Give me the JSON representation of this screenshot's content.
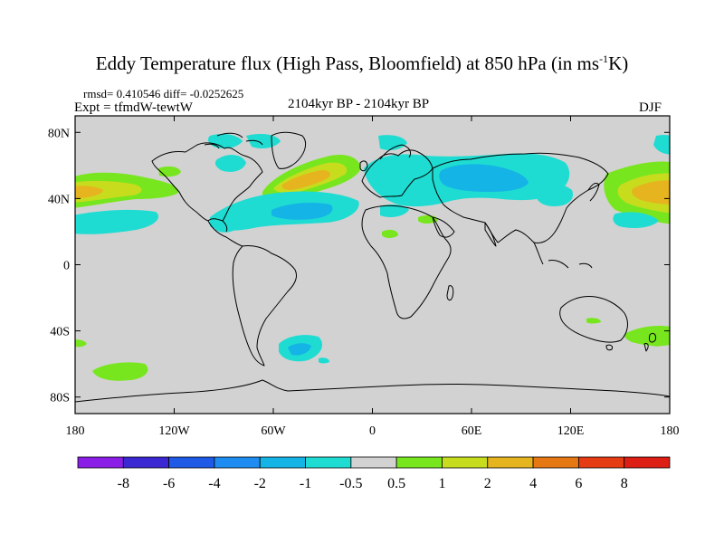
{
  "title": {
    "prefix": "Eddy Temperature flux (High Pass, Bloomfield) at 850 hPa (in ms",
    "superscript": "-1",
    "suffix": "K)"
  },
  "stats": "rmsd= 0.410546 diff= -0.0252625",
  "expt": "Expt = tfmdW-tewtW",
  "period": "2104kyr BP - 2104kyr BP",
  "season": "DJF",
  "map": {
    "projection": "cylindrical equidistant",
    "lon_range": [
      -180,
      180
    ],
    "lat_range": [
      -90,
      90
    ],
    "background_color": "#d2d2d2",
    "coastline_color": "#000000",
    "lat_ticks": [
      {
        "value": 80,
        "label": "80N"
      },
      {
        "value": 40,
        "label": "40N"
      },
      {
        "value": 0,
        "label": "0"
      },
      {
        "value": -40,
        "label": "40S"
      },
      {
        "value": -80,
        "label": "80S"
      }
    ],
    "lon_ticks": [
      {
        "value": -180,
        "label": "180"
      },
      {
        "value": -120,
        "label": "120W"
      },
      {
        "value": -60,
        "label": "60W"
      },
      {
        "value": 0,
        "label": "0"
      },
      {
        "value": 60,
        "label": "60E"
      },
      {
        "value": 120,
        "label": "120E"
      },
      {
        "value": 180,
        "label": "180"
      }
    ]
  },
  "colorbar": {
    "levels": [
      "-8",
      "-6",
      "-4",
      "-2",
      "-1",
      "-0.5",
      "0.5",
      "1",
      "2",
      "4",
      "6",
      "8"
    ],
    "colors": [
      "#8a1ee6",
      "#3c28d2",
      "#1e5ae6",
      "#1e8cf0",
      "#14b4e6",
      "#1edcd2",
      "#d2d2d2",
      "#78e61e",
      "#c8dc1e",
      "#e6b41e",
      "#e67814",
      "#e63c14",
      "#dc1e14"
    ]
  }
}
